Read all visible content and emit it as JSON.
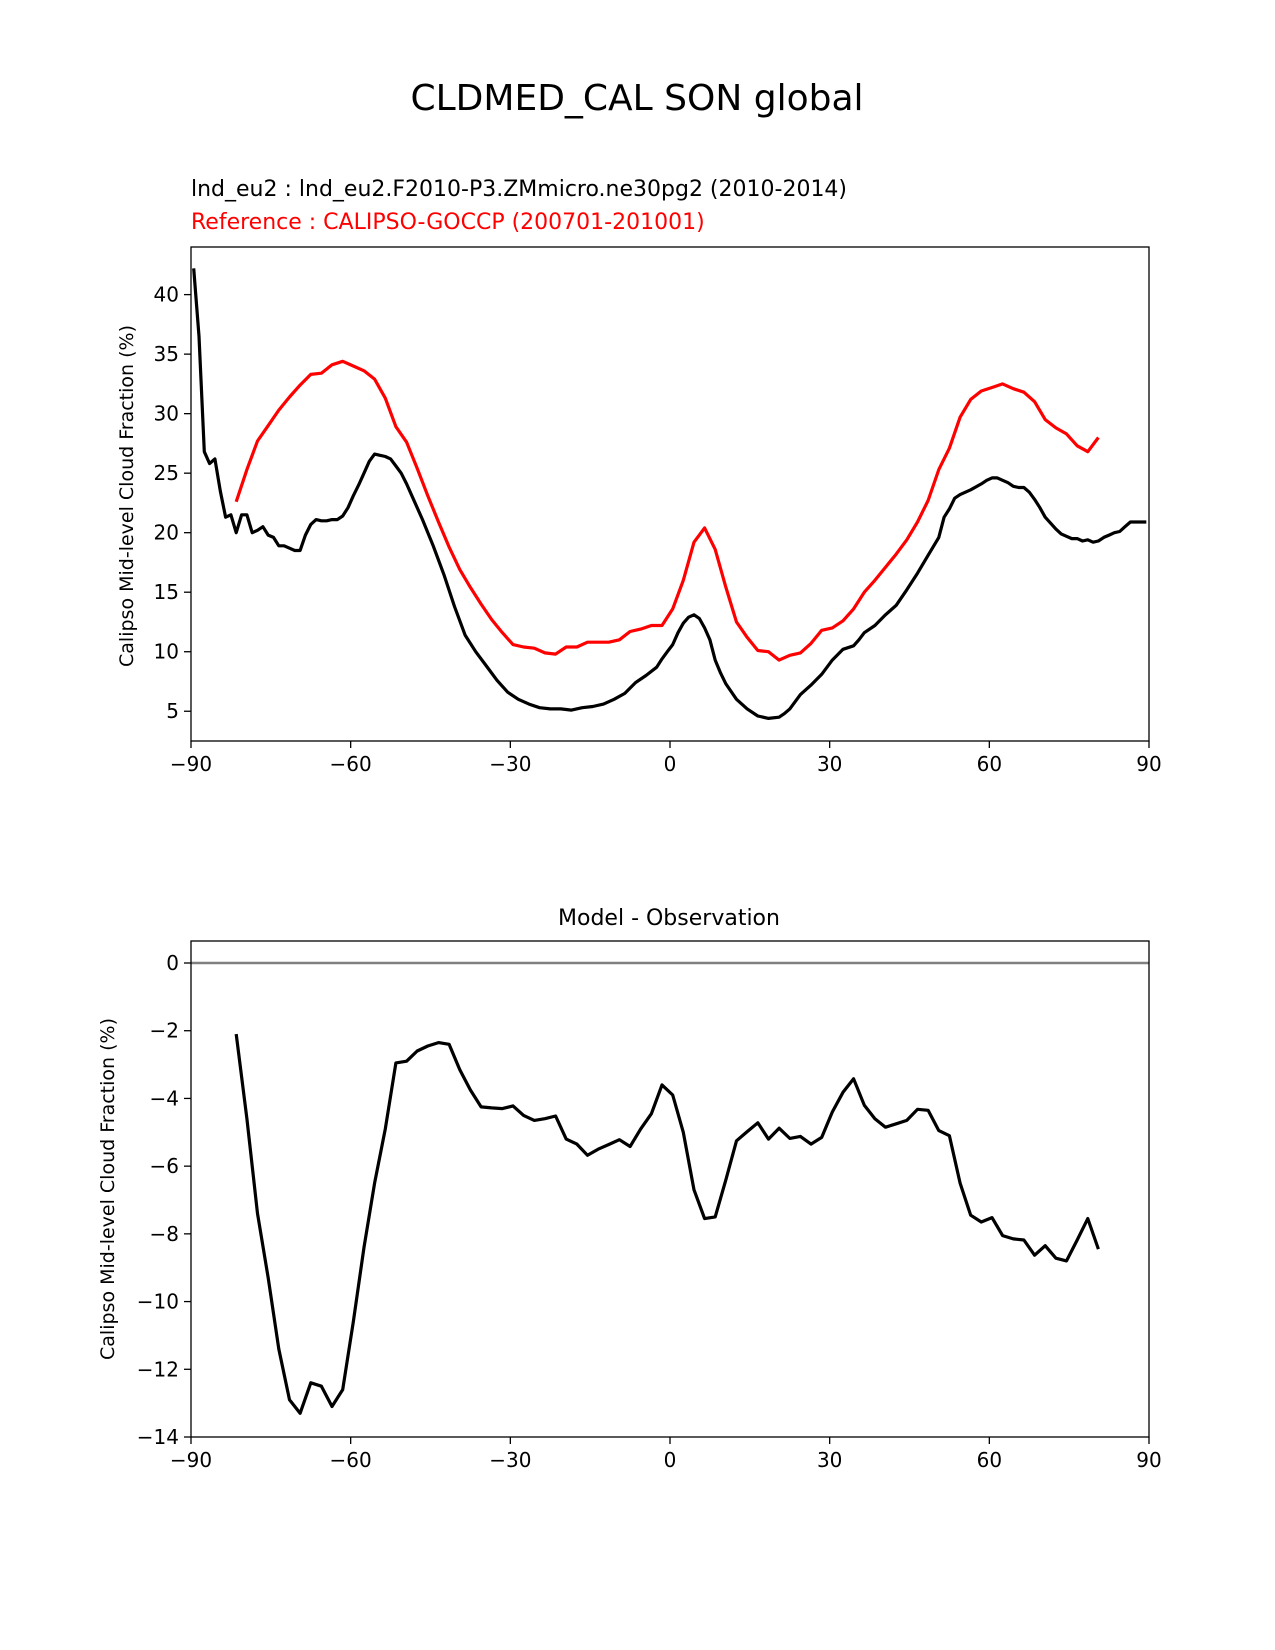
{
  "suptitle": "CLDMED_CAL SON global",
  "chart_data": [
    {
      "type": "line",
      "title_test": "lnd_eu2 : lnd_eu2.F2010-P3.ZMmicro.ne30pg2 (2010-2014)",
      "title_ref": "Reference : CALIPSO-GOCCP (200701-201001)",
      "xlabel": "",
      "ylabel": "Calipso Mid-level Cloud Fraction (%)",
      "xlim": [
        -90,
        90
      ],
      "ylim": [
        2.5,
        44.0
      ],
      "xticks": [
        -90,
        -60,
        -30,
        0,
        30,
        60,
        90
      ],
      "xtick_labels": [
        "−90",
        "−60",
        "−30",
        "0",
        "30",
        "60",
        "90"
      ],
      "yticks": [
        5,
        10,
        15,
        20,
        25,
        30,
        35,
        40
      ],
      "ytick_labels": [
        "5",
        "10",
        "15",
        "20",
        "25",
        "30",
        "35",
        "40"
      ],
      "series": [
        {
          "name": "test",
          "color": "#000000",
          "x": [
            -89.5,
            -88.5,
            -87.5,
            -86.5,
            -85.5,
            -84.5,
            -83.5,
            -82.5,
            -81.5,
            -80.5,
            -79.5,
            -78.5,
            -77.5,
            -76.5,
            -75.5,
            -74.5,
            -73.5,
            -72.5,
            -71.5,
            -70.5,
            -69.5,
            -68.5,
            -67.5,
            -66.5,
            -65.5,
            -64.5,
            -63.5,
            -62.5,
            -61.5,
            -60.5,
            -59.5,
            -58.5,
            -57.5,
            -56.5,
            -55.5,
            -54.5,
            -53.5,
            -52.5,
            -51.5,
            -50.5,
            -49.5,
            -48.5,
            -46.5,
            -44.5,
            -42.5,
            -40.5,
            -38.5,
            -36.5,
            -34.5,
            -32.5,
            -30.5,
            -28.5,
            -26.5,
            -24.5,
            -22.5,
            -20.5,
            -18.5,
            -16.5,
            -14.5,
            -12.5,
            -10.5,
            -8.5,
            -6.5,
            -4.5,
            -2.5,
            -1.5,
            -0.5,
            0.5,
            1.5,
            2.5,
            3.5,
            4.5,
            5.5,
            6.5,
            7.5,
            8.5,
            9.5,
            10.5,
            12.5,
            14.5,
            16.5,
            18.5,
            20.5,
            21.5,
            22.5,
            24.5,
            26.5,
            28.5,
            30.5,
            32.5,
            34.5,
            35.5,
            36.5,
            38.5,
            40.5,
            42.5,
            44.5,
            46.5,
            48.5,
            50.5,
            51.5,
            52.5,
            53.5,
            54.5,
            56.5,
            58.5,
            59.5,
            60.5,
            61.5,
            62.5,
            63.5,
            64.5,
            65.5,
            66.5,
            67.5,
            68.5,
            69.5,
            70.5,
            72.5,
            73.5,
            74.5,
            75.5,
            76.5,
            77.5,
            78.5,
            79.5,
            80.5,
            81.5,
            82.5,
            83.5,
            84.5,
            85.5,
            86.5,
            87.5,
            88.5,
            89.5
          ],
          "values": [
            42.2,
            36.5,
            26.8,
            25.8,
            26.2,
            23.5,
            21.3,
            21.5,
            20.0,
            21.5,
            21.5,
            20.0,
            20.2,
            20.5,
            19.8,
            19.6,
            18.9,
            18.9,
            18.7,
            18.5,
            18.5,
            19.8,
            20.7,
            21.1,
            21.0,
            21.0,
            21.1,
            21.1,
            21.4,
            22.1,
            23.1,
            24.0,
            25.0,
            26.0,
            26.6,
            26.5,
            26.4,
            26.2,
            25.6,
            25.0,
            24.1,
            23.1,
            21.1,
            18.9,
            16.5,
            13.8,
            11.4,
            10.0,
            8.8,
            7.6,
            6.6,
            6.0,
            5.6,
            5.3,
            5.2,
            5.2,
            5.1,
            5.3,
            5.4,
            5.6,
            6.0,
            6.5,
            7.4,
            8.0,
            8.7,
            9.4,
            10.0,
            10.6,
            11.6,
            12.4,
            12.9,
            13.1,
            12.8,
            12.0,
            11.0,
            9.3,
            8.2,
            7.3,
            6.0,
            5.2,
            4.6,
            4.4,
            4.5,
            4.8,
            5.2,
            6.4,
            7.2,
            8.1,
            9.3,
            10.2,
            10.5,
            11.0,
            11.6,
            12.2,
            13.1,
            13.9,
            15.2,
            16.6,
            18.1,
            19.6,
            21.3,
            22.0,
            22.9,
            23.2,
            23.6,
            24.1,
            24.4,
            24.6,
            24.6,
            24.4,
            24.2,
            23.9,
            23.8,
            23.8,
            23.4,
            22.8,
            22.1,
            21.3,
            20.3,
            19.9,
            19.7,
            19.5,
            19.5,
            19.3,
            19.4,
            19.2,
            19.3,
            19.6,
            19.8,
            20.0,
            20.1,
            20.5,
            20.9,
            20.9,
            20.9,
            20.9
          ]
        },
        {
          "name": "reference",
          "color": "#ff0000",
          "x": [
            -81.5,
            -79.5,
            -77.5,
            -75.5,
            -73.5,
            -71.5,
            -69.5,
            -67.5,
            -65.5,
            -63.5,
            -61.5,
            -59.5,
            -57.5,
            -55.5,
            -53.5,
            -51.5,
            -49.5,
            -47.5,
            -45.5,
            -43.5,
            -41.5,
            -39.5,
            -37.5,
            -35.5,
            -33.5,
            -31.5,
            -29.5,
            -27.5,
            -25.5,
            -23.5,
            -21.5,
            -19.5,
            -17.5,
            -15.5,
            -13.5,
            -11.5,
            -9.5,
            -7.5,
            -5.5,
            -3.5,
            -1.5,
            0.5,
            2.5,
            4.5,
            6.5,
            8.5,
            10.5,
            12.5,
            14.5,
            16.5,
            18.5,
            20.5,
            22.5,
            24.5,
            26.5,
            28.5,
            30.5,
            32.5,
            34.5,
            36.5,
            38.5,
            40.5,
            42.5,
            44.5,
            46.5,
            48.5,
            50.5,
            52.5,
            54.5,
            56.5,
            58.5,
            60.5,
            62.5,
            64.5,
            66.5,
            68.5,
            70.5,
            72.5,
            74.5,
            76.5,
            78.5,
            80.5
          ],
          "values": [
            22.6,
            25.3,
            27.7,
            29.0,
            30.3,
            31.4,
            32.4,
            33.3,
            33.4,
            34.1,
            34.4,
            34.0,
            33.6,
            32.9,
            31.3,
            28.9,
            27.6,
            25.4,
            23.1,
            20.9,
            18.8,
            16.9,
            15.4,
            14.0,
            12.7,
            11.6,
            10.6,
            10.4,
            10.3,
            9.9,
            9.8,
            10.4,
            10.4,
            10.8,
            10.8,
            10.8,
            11.0,
            11.7,
            11.9,
            12.2,
            12.2,
            13.6,
            16.0,
            19.2,
            20.4,
            18.6,
            15.4,
            12.5,
            11.2,
            10.1,
            10.0,
            9.3,
            9.7,
            9.9,
            10.7,
            11.8,
            12.0,
            12.6,
            13.6,
            15.0,
            16.0,
            17.1,
            18.2,
            19.4,
            20.9,
            22.7,
            25.3,
            27.1,
            29.7,
            31.2,
            31.9,
            32.2,
            32.5,
            32.1,
            31.8,
            31.0,
            29.5,
            28.8,
            28.3,
            27.3,
            26.8,
            28.0
          ]
        }
      ]
    },
    {
      "type": "line",
      "title": "Model - Observation",
      "xlabel": "",
      "ylabel": "Calipso Mid-level Cloud Fraction (%)",
      "xlim": [
        -90,
        90
      ],
      "ylim": [
        -14.0,
        0.65
      ],
      "xticks": [
        -90,
        -60,
        -30,
        0,
        30,
        60,
        90
      ],
      "xtick_labels": [
        "−90",
        "−60",
        "−30",
        "0",
        "30",
        "60",
        "90"
      ],
      "yticks": [
        0,
        -2,
        -4,
        -6,
        -8,
        -10,
        -12,
        -14
      ],
      "ytick_labels": [
        "0",
        "−2",
        "−4",
        "−6",
        "−8",
        "−10",
        "−12",
        "−14"
      ],
      "zero_line_color": "#808080",
      "series": [
        {
          "name": "difference",
          "color": "#000000",
          "x": [
            -81.5,
            -79.5,
            -77.5,
            -75.5,
            -73.5,
            -71.5,
            -69.5,
            -67.5,
            -65.5,
            -63.5,
            -61.5,
            -59.5,
            -57.5,
            -55.5,
            -53.5,
            -51.5,
            -49.5,
            -47.5,
            -45.5,
            -43.5,
            -41.5,
            -39.5,
            -37.5,
            -35.5,
            -33.5,
            -31.5,
            -29.5,
            -27.5,
            -25.5,
            -23.5,
            -21.5,
            -19.5,
            -17.5,
            -15.5,
            -13.5,
            -11.5,
            -9.5,
            -7.5,
            -5.5,
            -3.5,
            -1.5,
            0.5,
            2.5,
            4.5,
            6.5,
            8.5,
            10.5,
            12.5,
            14.5,
            16.5,
            18.5,
            20.5,
            22.5,
            24.5,
            26.5,
            28.5,
            30.5,
            32.5,
            34.5,
            36.5,
            38.5,
            40.5,
            42.5,
            44.5,
            46.5,
            48.5,
            50.5,
            52.5,
            54.5,
            56.5,
            58.5,
            60.5,
            62.5,
            64.5,
            66.5,
            68.5,
            70.5,
            72.5,
            74.5,
            76.5,
            78.5,
            80.5
          ],
          "values": [
            -2.1,
            -4.6,
            -7.4,
            -9.3,
            -11.4,
            -12.9,
            -13.3,
            -12.4,
            -12.5,
            -13.1,
            -12.6,
            -10.6,
            -8.4,
            -6.5,
            -4.9,
            -2.95,
            -2.9,
            -2.6,
            -2.45,
            -2.35,
            -2.4,
            -3.15,
            -3.75,
            -4.25,
            -4.28,
            -4.3,
            -4.22,
            -4.5,
            -4.65,
            -4.6,
            -4.52,
            -5.2,
            -5.35,
            -5.68,
            -5.5,
            -5.36,
            -5.22,
            -5.42,
            -4.9,
            -4.45,
            -3.6,
            -3.9,
            -5.0,
            -6.7,
            -7.55,
            -7.5,
            -6.4,
            -5.25,
            -4.98,
            -4.72,
            -5.2,
            -4.88,
            -5.18,
            -5.12,
            -5.35,
            -5.15,
            -4.4,
            -3.82,
            -3.42,
            -4.2,
            -4.6,
            -4.85,
            -4.75,
            -4.65,
            -4.32,
            -4.35,
            -4.95,
            -5.1,
            -6.5,
            -7.45,
            -7.65,
            -7.52,
            -8.05,
            -8.15,
            -8.18,
            -8.63,
            -8.35,
            -8.72,
            -8.8,
            -8.18,
            -7.55,
            -8.45
          ]
        }
      ]
    }
  ]
}
